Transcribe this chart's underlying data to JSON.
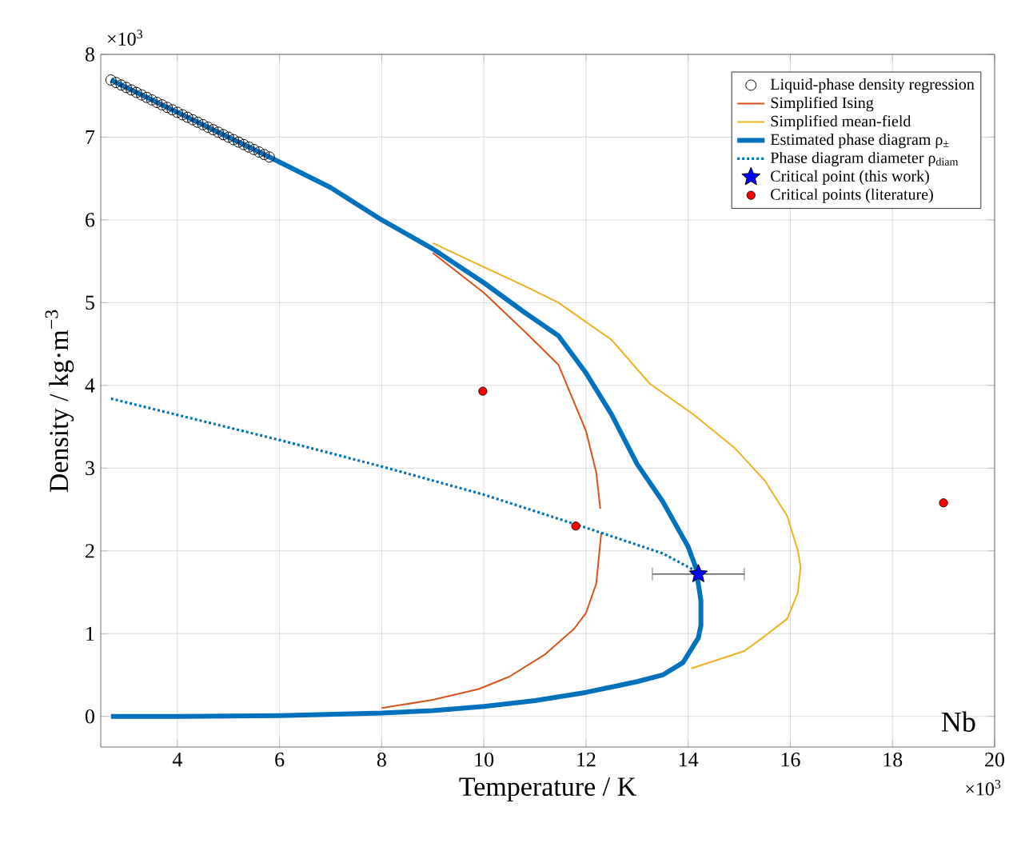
{
  "chart_data": {
    "type": "line",
    "xlabel": "Temperature / K",
    "ylabel": "Density / kg·m$^{−3}$",
    "xlim": [
      2.5,
      20
    ],
    "ylim": [
      -0.37,
      8
    ],
    "xticks": [
      4,
      6,
      8,
      10,
      12,
      14,
      16,
      18,
      20
    ],
    "yticks": [
      0,
      1,
      2,
      3,
      4,
      5,
      6,
      7,
      8
    ],
    "grid": true,
    "legend": "top right",
    "annotations": [
      "×10$^{3}$",
      "×10$^{3}$",
      "Nb"
    ],
    "series": [
      {
        "name": "Liquid-phase density regression",
        "type": "scatter",
        "marker": "circle",
        "color": "#000000",
        "x": [
          2.7,
          2.8,
          2.9,
          3.0,
          3.1,
          3.2,
          3.3,
          3.4,
          3.5,
          3.6,
          3.7,
          3.8,
          3.9,
          4.0,
          4.1,
          4.2,
          4.3,
          4.4,
          4.5,
          4.6,
          4.7,
          4.8,
          4.9,
          5.0,
          5.1,
          5.2,
          5.3,
          5.4,
          5.5,
          5.6,
          5.7,
          5.8
        ],
        "values": [
          7.69,
          7.66,
          7.63,
          7.6,
          7.57,
          7.54,
          7.51,
          7.48,
          7.45,
          7.42,
          7.39,
          7.36,
          7.33,
          7.3,
          7.27,
          7.24,
          7.21,
          7.18,
          7.15,
          7.12,
          7.09,
          7.06,
          7.03,
          7.0,
          6.97,
          6.94,
          6.91,
          6.88,
          6.85,
          6.82,
          6.79,
          6.76
        ]
      },
      {
        "name": "Simplified Ising",
        "line_style": "solid",
        "color": "#d95319",
        "x": [
          9,
          10,
          10.8,
          11.46,
          12.0,
          12.2,
          12.28,
          12.29,
          12.3,
          12.2,
          12.0,
          11.77,
          11.2,
          10.5,
          9.9,
          9,
          8
        ],
        "values": [
          5.6,
          5.12,
          4.65,
          4.25,
          3.45,
          2.95,
          2.51,
          null,
          2.22,
          1.6,
          1.25,
          1.06,
          0.75,
          0.48,
          0.33,
          0.2,
          0.1
        ]
      },
      {
        "name": "Simplified mean-field",
        "line_style": "solid",
        "color": "#edb120",
        "x": [
          9,
          10,
          10.8,
          11.46,
          12.5,
          13.25,
          14.1,
          14.9,
          15.5,
          15.94,
          16.15,
          16.2,
          16.15,
          15.94,
          15.5,
          15.1,
          14.06
        ],
        "values": [
          5.72,
          5.43,
          5.2,
          5.0,
          4.55,
          4.02,
          3.65,
          3.25,
          2.85,
          2.42,
          2.0,
          1.8,
          1.5,
          1.18,
          0.97,
          0.79,
          0.58
        ]
      },
      {
        "name": "Estimated phase diagram ρ$_{±}$",
        "line_style": "solid",
        "color": "#0072bd",
        "x": [
          2.7,
          4,
          5.8,
          7,
          8,
          9,
          10,
          10.8,
          11.46,
          12,
          12.5,
          13,
          13.5,
          14,
          14.15,
          14.25,
          14.25,
          14.2,
          13.9,
          13.5,
          13,
          12,
          11,
          10,
          9,
          8,
          6,
          4,
          2.7
        ],
        "values": [
          7.69,
          7.3,
          6.76,
          6.39,
          6.0,
          5.65,
          5.24,
          4.88,
          4.6,
          4.15,
          3.65,
          3.05,
          2.6,
          2.05,
          1.8,
          1.4,
          1.1,
          0.95,
          0.65,
          0.5,
          0.42,
          0.29,
          0.19,
          0.12,
          0.07,
          0.04,
          0.01,
          0.0,
          0.0
        ]
      },
      {
        "name": "Phase diagram diameter ρ$_{diam}$",
        "line_style": "dotted",
        "color": "#0072bd",
        "x": [
          2.7,
          6,
          8,
          10,
          12,
          13.5,
          14.2
        ],
        "values": [
          3.84,
          3.34,
          3.02,
          2.68,
          2.28,
          1.97,
          1.74
        ]
      },
      {
        "name": "Critical point (this work)",
        "type": "scatter",
        "marker": "star",
        "color": "#0000ff",
        "x": [
          14.2
        ],
        "values": [
          1.72
        ],
        "xerrors": [
          0.9
        ]
      },
      {
        "name": "Critical points (literature)",
        "type": "scatter",
        "marker": "circle",
        "color": "#ff0000",
        "x": [
          9.98,
          11.8,
          19.0
        ],
        "values": [
          3.93,
          2.3,
          2.58
        ]
      }
    ]
  }
}
